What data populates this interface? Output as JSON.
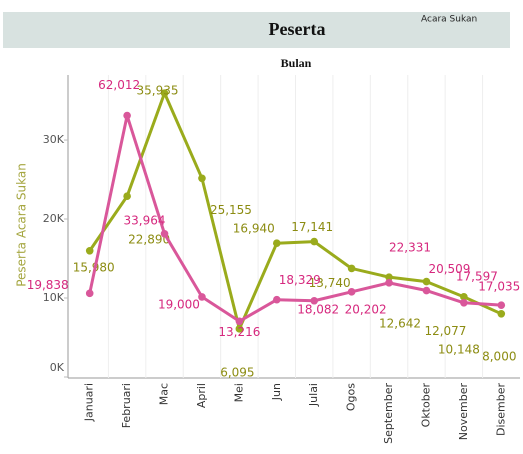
{
  "chart_data": {
    "type": "line",
    "title": "Peserta",
    "legend_title": "Acara Sukan",
    "x_label": "Bulan",
    "y_label": "Peserta Acara Sukan",
    "categories": [
      "Januari",
      "Februari",
      "Mac",
      "April",
      "Mei",
      "Jun",
      "Julai",
      "Ogos",
      "September",
      "Oktober",
      "November",
      "Disember"
    ],
    "series": [
      {
        "color": "#9aab1c",
        "label_color": "#8c8c12",
        "values": [
          15980,
          22890,
          35935,
          25155,
          6095,
          16940,
          17141,
          13740,
          12642,
          12077,
          10148,
          8000
        ],
        "value_labels": [
          "15,980",
          "22,890",
          "35,935",
          "25,155",
          "6,095",
          "16,940",
          "17,141",
          "13,740",
          "12,642",
          "12,077",
          "10,148",
          "8,000"
        ]
      },
      {
        "color": "#d9579a",
        "label_color": "#d6287e",
        "axis": "y2",
        "values": [
          19838,
          62012,
          33964,
          19000,
          13216,
          18329,
          18082,
          20202,
          22331,
          20509,
          17597,
          17035
        ],
        "value_labels": [
          "19,838",
          "62,012",
          "33,964",
          "19,000",
          "13,216",
          "18,329",
          "18,082",
          "20,202",
          "22,331",
          "20,509",
          "17,597",
          "17,035"
        ]
      }
    ],
    "ylim": [
      0,
      39500
    ],
    "yticks": [
      {
        "value": 0,
        "label": "0K"
      },
      {
        "value": 10000,
        "label": "10K"
      },
      {
        "value": 20000,
        "label": "20K"
      },
      {
        "value": 30000,
        "label": "30K"
      }
    ],
    "y2lim": [
      0,
      74000
    ]
  }
}
